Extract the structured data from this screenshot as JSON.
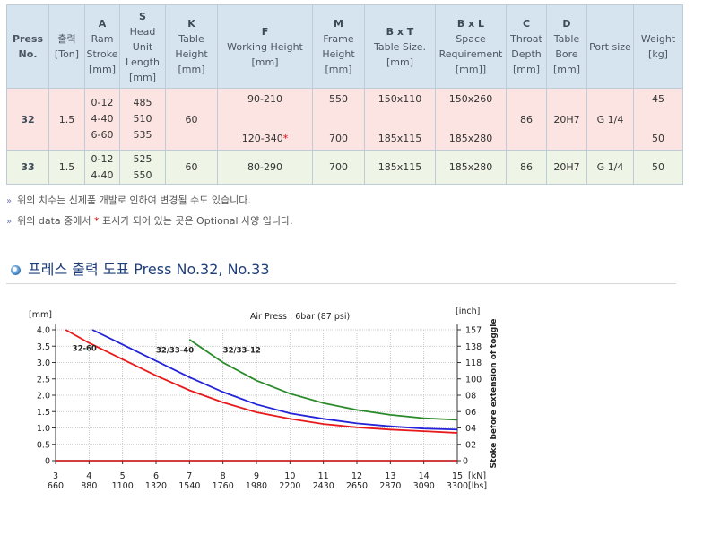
{
  "table": {
    "headers": [
      {
        "letter": "",
        "lines": [
          "Press",
          "No."
        ],
        "bold": true
      },
      {
        "letter": "",
        "lines": [
          "출력",
          "[Ton]"
        ]
      },
      {
        "letter": "A",
        "lines": [
          "Ram",
          "Stroke",
          "[mm]"
        ]
      },
      {
        "letter": "S",
        "lines": [
          "Head",
          "Unit",
          "Length",
          "[mm]"
        ]
      },
      {
        "letter": "K",
        "lines": [
          "Table",
          "Height",
          "[mm]"
        ]
      },
      {
        "letter": "F",
        "lines": [
          "Working Height",
          "[mm]"
        ]
      },
      {
        "letter": "M",
        "lines": [
          "Frame",
          "Height",
          "[mm]"
        ]
      },
      {
        "letter": "B x T",
        "lines": [
          "Table Size.",
          "[mm]"
        ]
      },
      {
        "letter": "B x L",
        "lines": [
          "Space",
          "Requirement",
          "[mm]]"
        ]
      },
      {
        "letter": "C",
        "lines": [
          "Throat",
          "Depth",
          "[mm]"
        ]
      },
      {
        "letter": "D",
        "lines": [
          "Table",
          "Bore",
          "[mm]"
        ]
      },
      {
        "letter": "",
        "lines": [
          "Port size"
        ]
      },
      {
        "letter": "",
        "lines": [
          "Weight",
          "[kg]"
        ]
      }
    ],
    "row32": {
      "press": "32",
      "ton": "1.5",
      "stroke": [
        "0-12",
        "4-40",
        "6-60"
      ],
      "head": [
        "485",
        "510",
        "535"
      ],
      "table_height": "60",
      "working_top": "90-210",
      "working_bottom": "120-340",
      "working_star": "*",
      "frame_top": "550",
      "frame_bottom": "700",
      "table_size_top": "150x110",
      "table_size_bottom": "185x115",
      "space_top": "150x260",
      "space_bottom": "185x280",
      "throat": "86",
      "bore": "20H7",
      "port": "G 1/4",
      "weight_top": "45",
      "weight_bottom": "50"
    },
    "row33": {
      "press": "33",
      "ton": "1.5",
      "stroke": [
        "0-12",
        "4-40"
      ],
      "head": [
        "525",
        "550"
      ],
      "table_height": "60",
      "working": "80-290",
      "frame": "700",
      "table_size": "185x115",
      "space": "185x280",
      "throat": "86",
      "bore": "20H7",
      "port": "G 1/4",
      "weight": "50"
    }
  },
  "notes": {
    "marker": "»",
    "note1": "위의 치수는 신제품 개발로 인하여 변경될 수도 있습니다.",
    "note2_a": "위의 data 중에서 ",
    "note2_star": "*",
    "note2_b": " 표시가 되어 있는 곳은 Optional 사양 입니다."
  },
  "section_title": "프레스 출력 도표 Press No.32, No.33",
  "chart_data": {
    "type": "line",
    "title": "Air Press : 6bar (87 psi)",
    "ylabel": "[mm]",
    "y2label": "[inch]",
    "y2_axis_title": "Stoke before extension of toggle",
    "xlabel_kn": "[kN]",
    "xlabel_lbs": "[lbs]",
    "xlim": [
      3,
      15
    ],
    "ylim": [
      0,
      4.0
    ],
    "y_ticks": [
      "4.0",
      "3.5",
      "3.0",
      "2.5",
      "2.0",
      "1.5",
      "1.0",
      "0.5",
      "0"
    ],
    "y2_ticks": [
      ".157",
      ".138",
      ".118",
      ".100",
      ".08",
      ".06",
      ".04",
      ".02",
      "0"
    ],
    "x_ticks_kn": [
      "3",
      "4",
      "5",
      "6",
      "7",
      "8",
      "9",
      "10",
      "11",
      "12",
      "13",
      "14",
      "15"
    ],
    "x_ticks_lbs": [
      "660",
      "880",
      "1100",
      "1320",
      "1540",
      "1760",
      "1980",
      "2200",
      "2430",
      "2650",
      "2870",
      "3090",
      "3300"
    ],
    "grid": true,
    "series": [
      {
        "name": "32-60",
        "color": "#e8191b",
        "points": [
          [
            3.3,
            4.0
          ],
          [
            4,
            3.6
          ],
          [
            5,
            3.1
          ],
          [
            6,
            2.6
          ],
          [
            7,
            2.15
          ],
          [
            8,
            1.78
          ],
          [
            9,
            1.48
          ],
          [
            10,
            1.28
          ],
          [
            11,
            1.12
          ],
          [
            12,
            1.02
          ],
          [
            13,
            0.95
          ],
          [
            14,
            0.9
          ],
          [
            15,
            0.85
          ]
        ]
      },
      {
        "name": "32/33-40",
        "color": "#2323d8",
        "points": [
          [
            4.1,
            4.0
          ],
          [
            5,
            3.55
          ],
          [
            6,
            3.05
          ],
          [
            7,
            2.55
          ],
          [
            8,
            2.1
          ],
          [
            9,
            1.72
          ],
          [
            10,
            1.45
          ],
          [
            11,
            1.28
          ],
          [
            12,
            1.14
          ],
          [
            13,
            1.05
          ],
          [
            14,
            0.98
          ],
          [
            15,
            0.95
          ]
        ]
      },
      {
        "name": "32/33-12",
        "color": "#2a8a2a",
        "points": [
          [
            7.0,
            3.7
          ],
          [
            8,
            3.0
          ],
          [
            9,
            2.45
          ],
          [
            10,
            2.05
          ],
          [
            11,
            1.76
          ],
          [
            12,
            1.55
          ],
          [
            13,
            1.4
          ],
          [
            14,
            1.3
          ],
          [
            15,
            1.25
          ]
        ]
      }
    ]
  }
}
